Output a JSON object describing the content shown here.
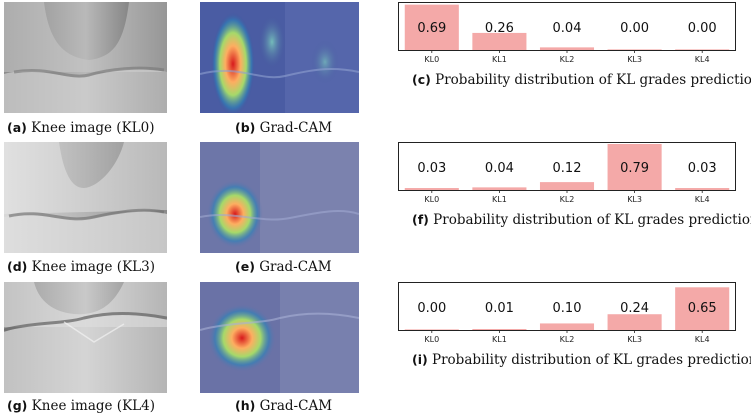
{
  "rows": [
    {
      "knee_caption": {
        "letter": "(a)",
        "text": "Knee image (KL0)"
      },
      "cam_caption": {
        "letter": "(b)",
        "text": "Grad-CAM"
      },
      "chart_caption": {
        "letter": "(c)",
        "text": "Probability distribution of KL grades prediction"
      }
    },
    {
      "knee_caption": {
        "letter": "(d)",
        "text": "Knee image (KL3)"
      },
      "cam_caption": {
        "letter": "(e)",
        "text": "Grad-CAM"
      },
      "chart_caption": {
        "letter": "(f)",
        "text": "Probability distribution of KL grades prediction"
      }
    },
    {
      "knee_caption": {
        "letter": "(g)",
        "text": "Knee image (KL4)"
      },
      "cam_caption": {
        "letter": "(h)",
        "text": "Grad-CAM"
      },
      "chart_caption": {
        "letter": "(i)",
        "text": "Probability distribution of KL grades prediction"
      }
    }
  ],
  "chart_data": [
    {
      "type": "bar",
      "categories": [
        "KL0",
        "KL1",
        "KL2",
        "KL3",
        "KL4"
      ],
      "values": [
        0.69,
        0.26,
        0.04,
        0.0,
        0.0
      ],
      "labels": [
        "0.69",
        "0.26",
        "0.04",
        "0.00",
        "0.00"
      ],
      "title": "",
      "xlabel": "",
      "ylabel": "",
      "ylim": [
        0,
        1
      ],
      "bar_color": "#f4a9a8"
    },
    {
      "type": "bar",
      "categories": [
        "KL0",
        "KL1",
        "KL2",
        "KL3",
        "KL4"
      ],
      "values": [
        0.03,
        0.04,
        0.12,
        0.79,
        0.03
      ],
      "labels": [
        "0.03",
        "0.04",
        "0.12",
        "0.79",
        "0.03"
      ],
      "title": "",
      "xlabel": "",
      "ylabel": "",
      "ylim": [
        0,
        1
      ],
      "bar_color": "#f4a9a8"
    },
    {
      "type": "bar",
      "categories": [
        "KL0",
        "KL1",
        "KL2",
        "KL3",
        "KL4"
      ],
      "values": [
        0.0,
        0.01,
        0.1,
        0.24,
        0.65
      ],
      "labels": [
        "0.00",
        "0.01",
        "0.10",
        "0.24",
        "0.65"
      ],
      "title": "",
      "xlabel": "",
      "ylabel": "",
      "ylim": [
        0,
        1
      ],
      "bar_color": "#f4a9a8"
    }
  ]
}
